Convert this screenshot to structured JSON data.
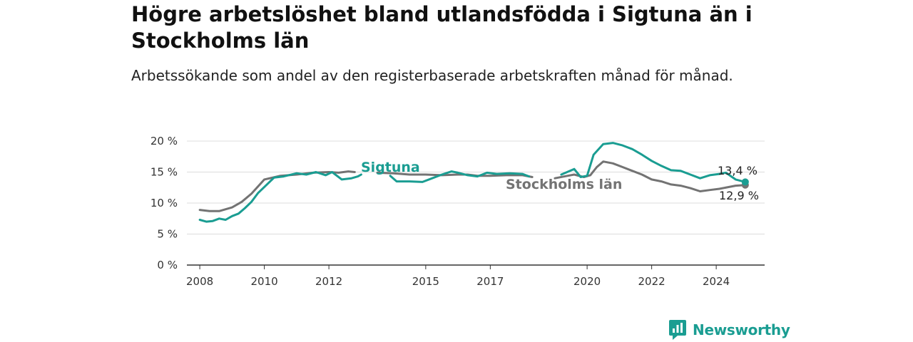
{
  "header": {
    "title": "Högre arbetslöshet bland utlandsfödda i Sigtuna än i Stockholms län",
    "subtitle": "Arbetssökande som andel av den registerbaserade arbetskraften månad för månad."
  },
  "brand": {
    "name": "Newsworthy",
    "icon": "newsworthy-logo-icon",
    "color": "#1a9d92"
  },
  "chart_data": {
    "type": "line",
    "x_axis": {
      "ticks": [
        "2008",
        "2010",
        "2012",
        "2015",
        "2017",
        "2020",
        "2022",
        "2024"
      ],
      "range": [
        2007.6,
        2025.5
      ]
    },
    "y_axis": {
      "ticks": [
        "0 %",
        "5 %",
        "10 %",
        "15 %",
        "20 %"
      ],
      "range": [
        0,
        20
      ]
    },
    "grid": true,
    "series": [
      {
        "name": "Stockholms län",
        "color": "#737373",
        "end_label": "12,9 %",
        "points": [
          [
            2008.0,
            8.9
          ],
          [
            2008.3,
            8.7
          ],
          [
            2008.6,
            8.7
          ],
          [
            2009.0,
            9.3
          ],
          [
            2009.3,
            10.2
          ],
          [
            2009.6,
            11.5
          ],
          [
            2010.0,
            13.8
          ],
          [
            2010.5,
            14.4
          ],
          [
            2011.0,
            14.6
          ],
          [
            2011.5,
            14.9
          ],
          [
            2012.0,
            15.0
          ],
          [
            2012.3,
            14.9
          ],
          [
            2012.6,
            15.1
          ],
          [
            2012.8,
            15.0
          ],
          [
            2013.5,
            14.9
          ],
          [
            2014.0,
            14.8
          ],
          [
            2014.5,
            14.6
          ],
          [
            2015.0,
            14.6
          ],
          [
            2015.5,
            14.5
          ],
          [
            2016.0,
            14.6
          ],
          [
            2016.3,
            14.6
          ],
          [
            2016.6,
            14.4
          ],
          [
            2017.0,
            14.4
          ],
          [
            2017.5,
            14.5
          ],
          [
            2018.0,
            14.5
          ],
          [
            2018.3,
            14.2
          ],
          [
            2019.0,
            14.0
          ],
          [
            2019.4,
            14.4
          ],
          [
            2019.6,
            14.6
          ],
          [
            2019.9,
            14.2
          ],
          [
            2020.1,
            14.5
          ],
          [
            2020.3,
            15.8
          ],
          [
            2020.5,
            16.7
          ],
          [
            2020.8,
            16.4
          ],
          [
            2021.1,
            15.8
          ],
          [
            2021.4,
            15.2
          ],
          [
            2021.7,
            14.6
          ],
          [
            2022.0,
            13.8
          ],
          [
            2022.3,
            13.5
          ],
          [
            2022.6,
            13.0
          ],
          [
            2022.9,
            12.8
          ],
          [
            2023.2,
            12.4
          ],
          [
            2023.5,
            11.9
          ],
          [
            2023.8,
            12.1
          ],
          [
            2024.1,
            12.3
          ],
          [
            2024.4,
            12.6
          ],
          [
            2024.6,
            12.8
          ],
          [
            2024.9,
            12.9
          ]
        ]
      },
      {
        "name": "Sigtuna",
        "color": "#1a9d92",
        "end_label": "13,4 %",
        "points": [
          [
            2008.0,
            7.3
          ],
          [
            2008.2,
            7.0
          ],
          [
            2008.4,
            7.1
          ],
          [
            2008.6,
            7.5
          ],
          [
            2008.8,
            7.3
          ],
          [
            2009.0,
            7.9
          ],
          [
            2009.2,
            8.3
          ],
          [
            2009.4,
            9.2
          ],
          [
            2009.6,
            10.2
          ],
          [
            2009.8,
            11.6
          ],
          [
            2010.0,
            12.6
          ],
          [
            2010.3,
            14.1
          ],
          [
            2010.6,
            14.3
          ],
          [
            2011.0,
            14.8
          ],
          [
            2011.3,
            14.6
          ],
          [
            2011.6,
            15.0
          ],
          [
            2011.9,
            14.5
          ],
          [
            2012.1,
            15.0
          ],
          [
            2012.4,
            13.8
          ],
          [
            2012.7,
            14.0
          ],
          [
            2012.9,
            14.3
          ],
          [
            2013.0,
            14.6
          ],
          [
            2013.9,
            14.4
          ],
          [
            2014.1,
            13.5
          ],
          [
            2014.5,
            13.5
          ],
          [
            2014.9,
            13.4
          ],
          [
            2015.2,
            14.0
          ],
          [
            2015.5,
            14.6
          ],
          [
            2015.8,
            15.1
          ],
          [
            2016.0,
            14.9
          ],
          [
            2016.3,
            14.5
          ],
          [
            2016.6,
            14.3
          ],
          [
            2016.9,
            14.9
          ],
          [
            2017.2,
            14.7
          ],
          [
            2017.6,
            14.8
          ],
          [
            2018.0,
            14.7
          ],
          [
            2018.2,
            14.3
          ],
          [
            2019.2,
            14.6
          ],
          [
            2019.6,
            15.5
          ],
          [
            2019.8,
            14.2
          ],
          [
            2020.0,
            14.4
          ],
          [
            2020.2,
            17.8
          ],
          [
            2020.5,
            19.5
          ],
          [
            2020.8,
            19.7
          ],
          [
            2021.1,
            19.3
          ],
          [
            2021.4,
            18.7
          ],
          [
            2021.7,
            17.8
          ],
          [
            2022.0,
            16.8
          ],
          [
            2022.3,
            16.0
          ],
          [
            2022.6,
            15.3
          ],
          [
            2022.9,
            15.2
          ],
          [
            2023.2,
            14.6
          ],
          [
            2023.5,
            14.0
          ],
          [
            2023.8,
            14.5
          ],
          [
            2024.1,
            14.7
          ],
          [
            2024.3,
            14.9
          ],
          [
            2024.6,
            13.8
          ],
          [
            2024.9,
            13.4
          ]
        ]
      }
    ]
  }
}
